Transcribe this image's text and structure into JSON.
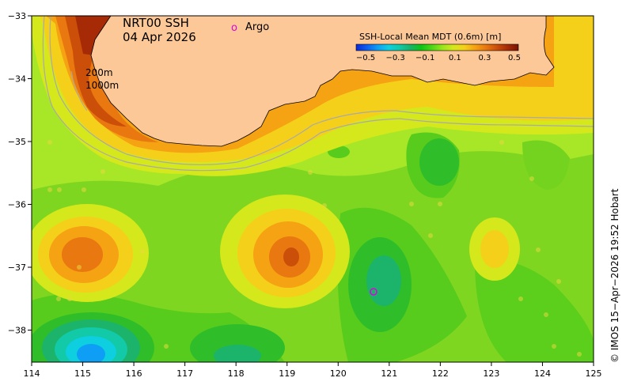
{
  "title": {
    "line1": "NRT00 SSH",
    "line2": "04 Apr 2026"
  },
  "legend": {
    "marker_symbol": "o",
    "marker_label": "Argo",
    "marker_color": "#e000e0"
  },
  "colorbar": {
    "label": "SSH-Local Mean MDT (0.6m) [m]",
    "ticks": [
      "−0.5",
      "−0.3",
      "−0.1",
      "0.1",
      "0.3",
      "0.5"
    ],
    "colors": [
      "#0a2ad6",
      "#0c5ef0",
      "#0e9ef5",
      "#0dcfe0",
      "#12c9a8",
      "#1ab36a",
      "#0fc414",
      "#4ed616",
      "#9ae61a",
      "#d4e81c",
      "#f5d01a",
      "#f5a213",
      "#e8780f",
      "#cc4f09",
      "#a62a06",
      "#7a1404"
    ]
  },
  "isobath_labels": {
    "shallow": "200m",
    "deep": "1000m"
  },
  "axes": {
    "x_ticks": [
      "114",
      "115",
      "116",
      "117",
      "118",
      "119",
      "120",
      "121",
      "122",
      "123",
      "124",
      "125"
    ],
    "y_ticks": [
      "−33",
      "−34",
      "−35",
      "−36",
      "−37",
      "−38"
    ]
  },
  "credit": "©  IMOS 15−Apr−2026 19:52 Hobart",
  "colors": {
    "land": "#fdc898",
    "background": "#a8e628",
    "coastline": "#000000",
    "isobath": "#a9a9a9"
  }
}
